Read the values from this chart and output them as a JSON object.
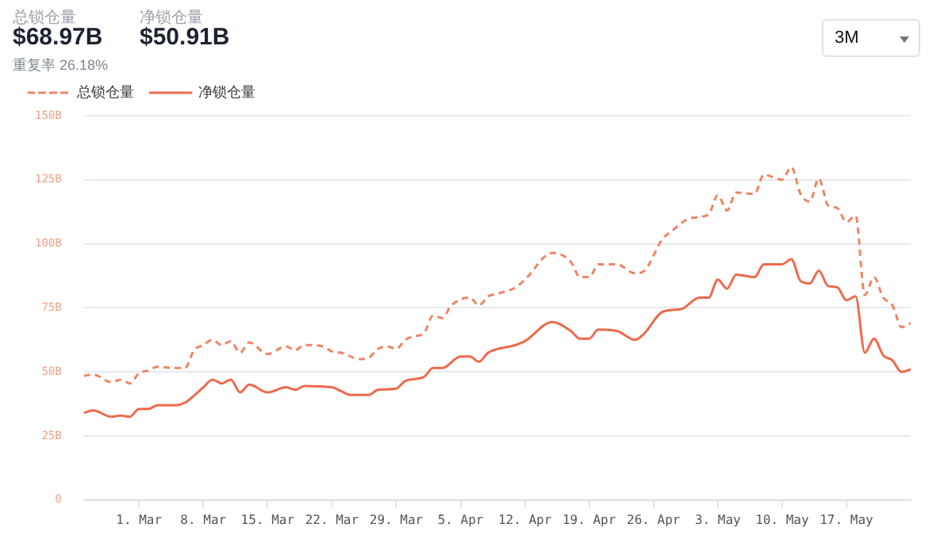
{
  "chart_data": {
    "type": "line",
    "annotations": [
      "总锁仓量",
      "$68.97B",
      "净锁仓量",
      "$50.91B",
      "重复率 26.18%",
      "3M"
    ],
    "series": [
      {
        "name": "总锁仓量",
        "color": "#f08466",
        "line_style": "dashed",
        "x": [
          "--02-23",
          "--02-24",
          "--02-26",
          "--02-27",
          "--02-28",
          "--03-01",
          "--03-02",
          "--03-03",
          "--03-05",
          "--03-06",
          "--03-07",
          "--03-08",
          "--03-09",
          "--03-10",
          "--03-11",
          "--03-12",
          "--03-13",
          "--03-15",
          "--03-17",
          "--03-18",
          "--03-19",
          "--03-21",
          "--03-22",
          "--03-23",
          "--03-25",
          "--03-26",
          "--03-27",
          "--03-28",
          "--03-29",
          "--03-30",
          "--03-31",
          "--04-01",
          "--04-02",
          "--04-03",
          "--04-04",
          "--04-06",
          "--04-07",
          "--04-08",
          "--04-09",
          "--04-11",
          "--04-12",
          "--04-15",
          "--04-17",
          "--04-18",
          "--04-19",
          "--04-20",
          "--04-22",
          "--04-24",
          "--04-25",
          "--04-27",
          "--04-28",
          "--04-30",
          "--05-02",
          "--05-03",
          "--05-04",
          "--05-05",
          "--05-07",
          "--05-08",
          "--05-10",
          "--05-11",
          "--05-12",
          "--05-13",
          "--05-14",
          "--05-15",
          "--05-16",
          "--05-17",
          "--05-18",
          "--05-19",
          "--05-20",
          "--05-21",
          "--05-22",
          "--05-23",
          "--05-24"
        ],
        "values": [
          48.5,
          49,
          46,
          47,
          45.5,
          49.5,
          50.5,
          52,
          51.5,
          51.5,
          58.5,
          60.5,
          62.5,
          60.5,
          62,
          57.5,
          61.5,
          57,
          60,
          58.5,
          60.5,
          60,
          58,
          57.5,
          55,
          55.5,
          59,
          60,
          59,
          62.5,
          64,
          65,
          72,
          71,
          76,
          79,
          76,
          79.5,
          80.5,
          83,
          86,
          96.5,
          93,
          87,
          87,
          92,
          92,
          88.5,
          89.5,
          102,
          105,
          110,
          111.5,
          119,
          113,
          120,
          119.5,
          127,
          125,
          130,
          119.5,
          116.5,
          125.5,
          115,
          114,
          108.5,
          111,
          80,
          87,
          79,
          76,
          67.5,
          69
        ]
      },
      {
        "name": "净锁仓量",
        "color": "#ee6a4c",
        "line_style": "solid",
        "x": [
          "--02-23",
          "--02-24",
          "--02-26",
          "--02-27",
          "--02-28",
          "--03-01",
          "--03-02",
          "--03-03",
          "--03-05",
          "--03-06",
          "--03-08",
          "--03-09",
          "--03-10",
          "--03-11",
          "--03-12",
          "--03-13",
          "--03-15",
          "--03-17",
          "--03-18",
          "--03-19",
          "--03-22",
          "--03-23",
          "--03-24",
          "--03-26",
          "--03-27",
          "--03-29",
          "--03-30",
          "--04-01",
          "--04-02",
          "--04-03",
          "--04-05",
          "--04-06",
          "--04-07",
          "--04-08",
          "--04-11",
          "--04-12",
          "--04-15",
          "--04-17",
          "--04-18",
          "--04-19",
          "--04-20",
          "--04-22",
          "--04-24",
          "--04-25",
          "--04-27",
          "--04-29",
          "--05-01",
          "--05-02",
          "--05-03",
          "--05-04",
          "--05-05",
          "--05-07",
          "--05-08",
          "--05-10",
          "--05-11",
          "--05-12",
          "--05-13",
          "--05-14",
          "--05-15",
          "--05-16",
          "--05-17",
          "--05-18",
          "--05-19",
          "--05-20",
          "--05-21",
          "--05-22",
          "--05-23",
          "--05-24"
        ],
        "values": [
          34,
          35,
          32.5,
          33,
          32.5,
          35.5,
          35.5,
          37,
          37,
          38,
          44,
          47,
          45.5,
          47,
          42,
          45,
          42,
          44,
          43,
          44.5,
          44,
          42.5,
          41,
          41,
          43,
          43.5,
          46.5,
          48,
          51.5,
          51.5,
          56,
          56,
          54,
          57.5,
          60.5,
          62,
          69.5,
          66,
          63,
          63,
          66.5,
          66,
          62.5,
          65,
          73.5,
          74.5,
          79,
          79,
          86,
          82.5,
          88,
          87,
          92,
          92,
          94,
          85.5,
          84.5,
          89.5,
          83.5,
          83,
          78,
          79.5,
          57.5,
          63,
          56.5,
          54.5,
          50,
          51
        ]
      }
    ],
    "xlim": [
      "--02-23",
      "--05-24"
    ],
    "xticks": [
      {
        "value": "--03-01",
        "label": "1. Mar"
      },
      {
        "value": "--03-08",
        "label": "8. Mar"
      },
      {
        "value": "--03-15",
        "label": "15. Mar"
      },
      {
        "value": "--03-22",
        "label": "22. Mar"
      },
      {
        "value": "--03-29",
        "label": "29. Mar"
      },
      {
        "value": "--04-05",
        "label": "5. Apr"
      },
      {
        "value": "--04-12",
        "label": "12. Apr"
      },
      {
        "value": "--04-19",
        "label": "19. Apr"
      },
      {
        "value": "--04-26",
        "label": "26. Apr"
      },
      {
        "value": "--05-03",
        "label": "3. May"
      },
      {
        "value": "--05-10",
        "label": "10. May"
      },
      {
        "value": "--05-17",
        "label": "17. May"
      }
    ],
    "ylim": [
      0,
      150
    ],
    "yticks": [
      0,
      {
        "value": 25,
        "label": "25B"
      },
      {
        "value": 50,
        "label": "50B"
      },
      {
        "value": 75,
        "label": "75B"
      },
      {
        "value": 100,
        "label": "100B"
      },
      {
        "value": 125,
        "label": "125B"
      },
      {
        "value": 150,
        "label": "150B"
      }
    ],
    "grid": "y",
    "legend": "top left",
    "marker": "none"
  }
}
